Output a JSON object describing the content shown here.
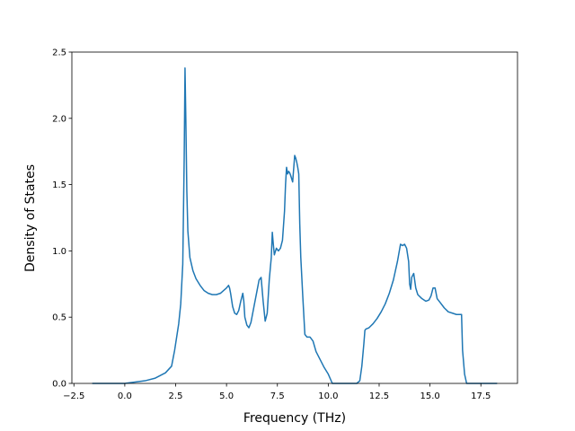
{
  "chart_data": {
    "type": "line",
    "title": "",
    "xlabel": "Frequency (THz)",
    "ylabel": "Density of States",
    "xlim": [
      -2.6,
      19.3
    ],
    "ylim": [
      0.0,
      2.5
    ],
    "grid": false,
    "xticks": [
      -2.5,
      0.0,
      2.5,
      5.0,
      7.5,
      10.0,
      12.5,
      15.0,
      17.5
    ],
    "xtick_labels": [
      "−2.5",
      "0.0",
      "2.5",
      "5.0",
      "7.5",
      "10.0",
      "12.5",
      "15.0",
      "17.5"
    ],
    "yticks": [
      0.0,
      0.5,
      1.0,
      1.5,
      2.0,
      2.5
    ],
    "ytick_labels": [
      "0.0",
      "0.5",
      "1.0",
      "1.5",
      "2.0",
      "2.5"
    ],
    "colors": {
      "line": "#1f77b4"
    },
    "series": [
      {
        "x": [
          -1.6,
          -1.0,
          -0.5,
          0.0,
          0.5,
          1.0,
          1.5,
          2.0,
          2.3,
          2.45,
          2.55,
          2.65,
          2.75,
          2.85,
          2.92,
          2.96,
          3.0,
          3.05,
          3.1,
          3.2,
          3.35,
          3.5,
          3.7,
          3.9,
          4.1,
          4.3,
          4.5,
          4.7,
          4.85,
          5.0,
          5.1,
          5.15,
          5.2,
          5.3,
          5.4,
          5.5,
          5.6,
          5.7,
          5.8,
          5.85,
          5.9,
          6.0,
          6.1,
          6.2,
          6.35,
          6.5,
          6.6,
          6.7,
          6.8,
          6.9,
          7.0,
          7.1,
          7.2,
          7.25,
          7.3,
          7.35,
          7.45,
          7.55,
          7.65,
          7.75,
          7.85,
          7.9,
          7.95,
          8.0,
          8.05,
          8.1,
          8.15,
          8.25,
          8.35,
          8.4,
          8.45,
          8.5,
          8.55,
          8.6,
          8.65,
          8.75,
          8.85,
          8.95,
          9.1,
          9.25,
          9.4,
          9.6,
          9.8,
          10.0,
          10.2,
          10.4,
          10.6,
          10.8,
          11.0,
          11.2,
          11.4,
          11.55,
          11.65,
          11.75,
          11.8,
          11.85,
          12.0,
          12.2,
          12.4,
          12.6,
          12.8,
          13.0,
          13.2,
          13.4,
          13.55,
          13.65,
          13.75,
          13.85,
          13.95,
          14.0,
          14.05,
          14.1,
          14.2,
          14.3,
          14.4,
          14.6,
          14.8,
          14.95,
          15.05,
          15.15,
          15.25,
          15.35,
          15.5,
          15.7,
          15.9,
          16.1,
          16.3,
          16.45,
          16.55,
          16.6,
          16.7,
          16.8,
          17.0,
          17.5,
          18.3
        ],
        "y": [
          0.0,
          0.0,
          0.0,
          0.0,
          0.01,
          0.02,
          0.04,
          0.08,
          0.13,
          0.25,
          0.35,
          0.45,
          0.6,
          0.9,
          1.7,
          2.38,
          2.0,
          1.45,
          1.15,
          0.95,
          0.85,
          0.79,
          0.74,
          0.7,
          0.68,
          0.67,
          0.67,
          0.68,
          0.7,
          0.72,
          0.74,
          0.72,
          0.68,
          0.58,
          0.53,
          0.52,
          0.55,
          0.62,
          0.68,
          0.62,
          0.5,
          0.44,
          0.42,
          0.46,
          0.58,
          0.7,
          0.78,
          0.8,
          0.62,
          0.47,
          0.53,
          0.78,
          0.95,
          1.14,
          1.05,
          0.97,
          1.02,
          1.0,
          1.02,
          1.08,
          1.3,
          1.5,
          1.63,
          1.58,
          1.6,
          1.59,
          1.57,
          1.52,
          1.72,
          1.7,
          1.67,
          1.63,
          1.58,
          1.2,
          0.95,
          0.65,
          0.37,
          0.35,
          0.35,
          0.32,
          0.24,
          0.18,
          0.12,
          0.07,
          0.0,
          0.0,
          0.0,
          0.0,
          0.0,
          0.0,
          0.0,
          0.02,
          0.13,
          0.3,
          0.4,
          0.41,
          0.42,
          0.45,
          0.49,
          0.54,
          0.6,
          0.68,
          0.78,
          0.92,
          1.05,
          1.04,
          1.05,
          1.02,
          0.92,
          0.75,
          0.71,
          0.8,
          0.83,
          0.72,
          0.67,
          0.64,
          0.62,
          0.63,
          0.66,
          0.72,
          0.72,
          0.64,
          0.61,
          0.57,
          0.54,
          0.53,
          0.52,
          0.52,
          0.52,
          0.25,
          0.07,
          0.0,
          0.0,
          0.0,
          0.0
        ]
      }
    ]
  }
}
